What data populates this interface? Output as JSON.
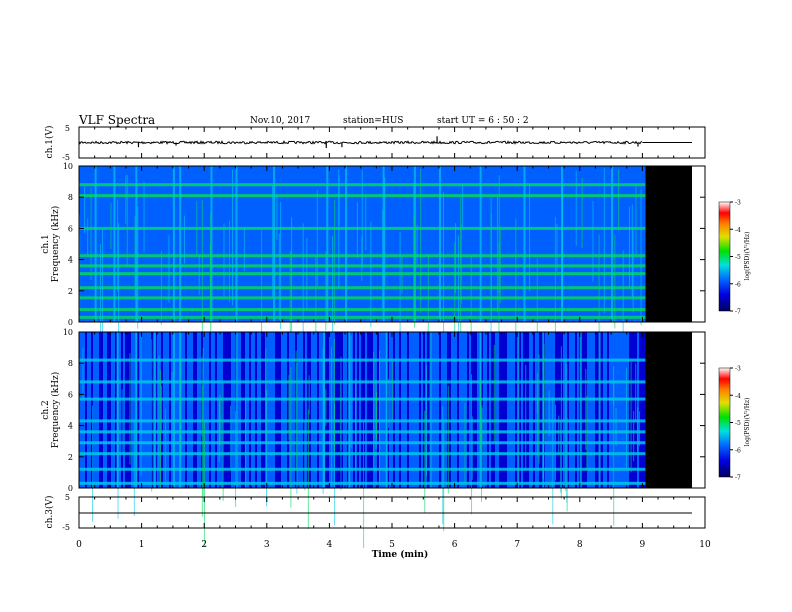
{
  "header": {
    "title": "VLF Spectra",
    "date": "Nov.10, 2017",
    "station": "station=HUS",
    "start": "start  UT =   6  : 50 : 2"
  },
  "chart_data": [
    {
      "type": "line",
      "panel": "ch1-waveform",
      "ylabel": "ch.1(V)",
      "yticks": [
        "5",
        "-5"
      ],
      "ylim": [
        -5,
        5
      ],
      "xlim": [
        0,
        10
      ],
      "data_end_min": 9.0,
      "baseline": 0,
      "spikes": [
        {
          "x": 0.95,
          "y": -1.5
        },
        {
          "x": 1.55,
          "y": -1.0
        },
        {
          "x": 3.95,
          "y": -1.8
        },
        {
          "x": 4.2,
          "y": -1.5
        },
        {
          "x": 5.72,
          "y": 2.0
        },
        {
          "x": 8.93,
          "y": -1.3
        }
      ]
    },
    {
      "type": "heatmap",
      "panel": "ch1-spectrogram",
      "ylabel": "ch.1\nFrequency (kHz)",
      "ylim": [
        0,
        10
      ],
      "yticks": [
        "0",
        "2",
        "4",
        "6",
        "8",
        "10"
      ],
      "xlim": [
        0,
        10
      ],
      "data_end_min": 9.05,
      "colorbar": {
        "label": "log(PSD)(V²/Hz)",
        "ticks": [
          "-3",
          "-4",
          "-5",
          "-6",
          "-7"
        ],
        "range": [
          -7,
          -3
        ]
      },
      "bands_khz": [
        0.3,
        0.8,
        1.55,
        2.2,
        3.1,
        3.6,
        4.25,
        6.0,
        8.1,
        8.8
      ],
      "vertical_lines_min": [
        0.25,
        0.55,
        0.9,
        1.5,
        1.6,
        2.1,
        2.5,
        3.1,
        3.95,
        4.25,
        4.85,
        5.35,
        5.75,
        6.4,
        7.1,
        7.7,
        8.5
      ]
    },
    {
      "type": "heatmap",
      "panel": "ch2-spectrogram",
      "ylabel": "ch.2\nFrequency (kHz)",
      "ylim": [
        0,
        10
      ],
      "yticks": [
        "0",
        "2",
        "4",
        "6",
        "8",
        "10"
      ],
      "xlim": [
        0,
        10
      ],
      "data_end_min": 9.05,
      "colorbar": {
        "label": "log(PSD)(V²/Hz)",
        "ticks": [
          "-3",
          "-4",
          "-5",
          "-6",
          "-7"
        ],
        "range": [
          -7,
          -3
        ]
      },
      "bands_khz": [
        0.3,
        1.2,
        2.2,
        2.9,
        3.6,
        4.3,
        5.7,
        6.8,
        8.2
      ],
      "vertical_lines_min": [
        0.6,
        0.9,
        1.2,
        1.5,
        1.6,
        2.5,
        3.9,
        4.3,
        4.9,
        5.6,
        6.4,
        7.0,
        7.4,
        8.0,
        8.3
      ]
    },
    {
      "type": "line",
      "panel": "ch3-waveform",
      "ylabel": "ch.3(V)",
      "yticks": [
        "5",
        "-5"
      ],
      "ylim": [
        -5,
        5
      ],
      "xlim": [
        0,
        10
      ],
      "baseline": 0
    }
  ],
  "xaxis": {
    "label": "Time (min)",
    "ticks": [
      "0",
      "1",
      "2",
      "3",
      "4",
      "5",
      "6",
      "7",
      "8",
      "9",
      "10"
    ]
  }
}
